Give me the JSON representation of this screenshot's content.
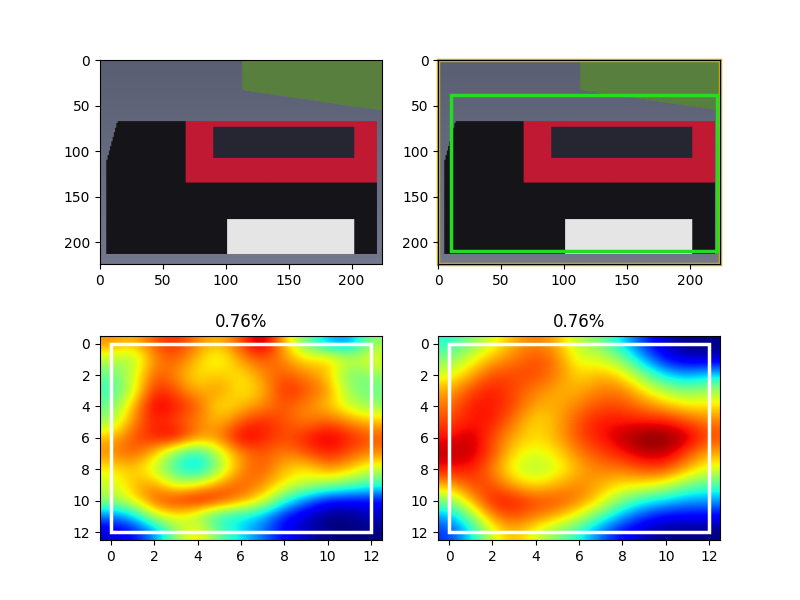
{
  "chart_data": [
    {
      "type": "image",
      "xlim": [
        0,
        224
      ],
      "ylim": [
        224,
        0
      ],
      "xticks": [
        0,
        50,
        100,
        150,
        200
      ],
      "yticks": [
        0,
        50,
        100,
        150,
        200
      ],
      "boxes": []
    },
    {
      "type": "image",
      "xlim": [
        0,
        224
      ],
      "ylim": [
        224,
        0
      ],
      "xticks": [
        0,
        50,
        100,
        150,
        200
      ],
      "yticks": [
        0,
        50,
        100,
        150,
        200
      ],
      "boxes": [
        {
          "x": [
            0,
            224
          ],
          "y": [
            0,
            224
          ],
          "color": "#c8b400"
        },
        {
          "x": [
            10,
            222
          ],
          "y": [
            38,
            210
          ],
          "color": "#22dd22"
        }
      ]
    },
    {
      "type": "heatmap",
      "title": "0.76%",
      "xlim": [
        -0.5,
        12.5
      ],
      "ylim": [
        12.5,
        -0.5
      ],
      "xticks": [
        0,
        2,
        4,
        6,
        8,
        10,
        12
      ],
      "yticks": [
        0,
        2,
        4,
        6,
        8,
        10,
        12
      ],
      "boxes": [
        {
          "x": [
            0,
            12
          ],
          "y": [
            0,
            12
          ],
          "color": "#ffffff"
        }
      ],
      "cells": [
        [
          0.75,
          0.7,
          0.8,
          0.85,
          0.75,
          0.7,
          0.8,
          0.95,
          0.7,
          0.5,
          0.35,
          0.3,
          0.55
        ],
        [
          0.6,
          0.55,
          0.75,
          0.8,
          0.7,
          0.6,
          0.75,
          0.8,
          0.75,
          0.65,
          0.7,
          0.6,
          0.65
        ],
        [
          0.5,
          0.6,
          0.8,
          0.75,
          0.65,
          0.7,
          0.65,
          0.75,
          0.8,
          0.75,
          0.7,
          0.5,
          0.55
        ],
        [
          0.45,
          0.6,
          0.85,
          0.8,
          0.7,
          0.75,
          0.65,
          0.7,
          0.85,
          0.8,
          0.75,
          0.55,
          0.5
        ],
        [
          0.5,
          0.7,
          0.9,
          0.85,
          0.8,
          0.65,
          0.7,
          0.75,
          0.8,
          0.75,
          0.7,
          0.6,
          0.55
        ],
        [
          0.55,
          0.75,
          0.85,
          0.8,
          0.75,
          0.7,
          0.8,
          0.85,
          0.8,
          0.75,
          0.8,
          0.75,
          0.7
        ],
        [
          0.7,
          0.8,
          0.85,
          0.9,
          0.75,
          0.75,
          0.9,
          0.85,
          0.8,
          0.85,
          0.9,
          0.85,
          0.8
        ],
        [
          0.75,
          0.8,
          0.7,
          0.5,
          0.4,
          0.6,
          0.75,
          0.8,
          0.75,
          0.8,
          0.85,
          0.8,
          0.75
        ],
        [
          0.65,
          0.7,
          0.6,
          0.45,
          0.35,
          0.55,
          0.75,
          0.8,
          0.7,
          0.65,
          0.75,
          0.7,
          0.6
        ],
        [
          0.6,
          0.7,
          0.75,
          0.6,
          0.65,
          0.75,
          0.8,
          0.75,
          0.65,
          0.6,
          0.55,
          0.5,
          0.45
        ],
        [
          0.55,
          0.65,
          0.8,
          0.85,
          0.9,
          0.85,
          0.75,
          0.65,
          0.45,
          0.3,
          0.2,
          0.2,
          0.2
        ],
        [
          0.3,
          0.35,
          0.6,
          0.65,
          0.55,
          0.4,
          0.4,
          0.35,
          0.2,
          0.15,
          0.1,
          0.1,
          0.15
        ],
        [
          0.15,
          0.2,
          0.3,
          0.55,
          0.7,
          0.5,
          0.4,
          0.3,
          0.2,
          0.15,
          0.1,
          0.1,
          0.1
        ]
      ]
    },
    {
      "type": "heatmap",
      "title": "0.76%",
      "xlim": [
        -0.5,
        12.5
      ],
      "ylim": [
        12.5,
        -0.5
      ],
      "xticks": [
        0,
        2,
        4,
        6,
        8,
        10,
        12
      ],
      "yticks": [
        0,
        2,
        4,
        6,
        8,
        10,
        12
      ],
      "boxes": [
        {
          "x": [
            0,
            12
          ],
          "y": [
            0,
            12
          ],
          "color": "#ffffff"
        }
      ],
      "cells": [
        [
          0.4,
          0.5,
          0.6,
          0.7,
          0.75,
          0.7,
          0.55,
          0.5,
          0.35,
          0.2,
          0.1,
          0.05,
          0.05
        ],
        [
          0.5,
          0.6,
          0.7,
          0.75,
          0.8,
          0.75,
          0.6,
          0.6,
          0.5,
          0.3,
          0.15,
          0.1,
          0.1
        ],
        [
          0.6,
          0.7,
          0.8,
          0.8,
          0.8,
          0.75,
          0.65,
          0.7,
          0.65,
          0.5,
          0.35,
          0.3,
          0.35
        ],
        [
          0.7,
          0.8,
          0.85,
          0.8,
          0.75,
          0.7,
          0.7,
          0.75,
          0.75,
          0.65,
          0.55,
          0.5,
          0.55
        ],
        [
          0.75,
          0.85,
          0.85,
          0.8,
          0.7,
          0.7,
          0.75,
          0.8,
          0.8,
          0.75,
          0.7,
          0.65,
          0.65
        ],
        [
          0.8,
          0.85,
          0.85,
          0.75,
          0.65,
          0.7,
          0.8,
          0.85,
          0.85,
          0.85,
          0.85,
          0.8,
          0.75
        ],
        [
          0.85,
          0.9,
          0.8,
          0.7,
          0.65,
          0.7,
          0.8,
          0.85,
          0.9,
          0.95,
          0.95,
          0.9,
          0.8
        ],
        [
          0.9,
          0.9,
          0.8,
          0.65,
          0.6,
          0.65,
          0.75,
          0.8,
          0.85,
          0.9,
          0.9,
          0.8,
          0.7
        ],
        [
          0.85,
          0.85,
          0.75,
          0.6,
          0.55,
          0.6,
          0.7,
          0.75,
          0.75,
          0.8,
          0.8,
          0.7,
          0.6
        ],
        [
          0.7,
          0.8,
          0.8,
          0.7,
          0.65,
          0.7,
          0.75,
          0.7,
          0.65,
          0.65,
          0.6,
          0.5,
          0.45
        ],
        [
          0.5,
          0.7,
          0.85,
          0.85,
          0.8,
          0.8,
          0.75,
          0.65,
          0.5,
          0.4,
          0.35,
          0.3,
          0.3
        ],
        [
          0.3,
          0.5,
          0.75,
          0.8,
          0.75,
          0.7,
          0.6,
          0.45,
          0.3,
          0.2,
          0.15,
          0.15,
          0.15
        ],
        [
          0.2,
          0.35,
          0.6,
          0.7,
          0.6,
          0.5,
          0.4,
          0.25,
          0.15,
          0.1,
          0.05,
          0.05,
          0.05
        ]
      ]
    }
  ]
}
